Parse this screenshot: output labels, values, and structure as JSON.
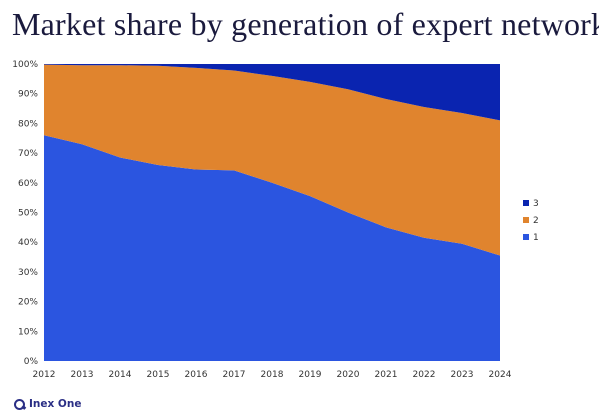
{
  "title": "Market share by generation of expert networks",
  "logo": {
    "text": "Inex One"
  },
  "colors": {
    "gen1": "#2b55e0",
    "gen2": "#e0842e",
    "gen3": "#0a24b0"
  },
  "chart_data": {
    "type": "area",
    "stacked": true,
    "title": "Market share by generation of expert networks",
    "xlabel": "",
    "ylabel": "",
    "x": [
      "2012",
      "2013",
      "2014",
      "2015",
      "2016",
      "2017",
      "2018",
      "2019",
      "2020",
      "2021",
      "2022",
      "2023",
      "2024"
    ],
    "ylim": [
      0,
      100
    ],
    "yticks": [
      "0%",
      "10%",
      "20%",
      "30%",
      "40%",
      "50%",
      "60%",
      "70%",
      "80%",
      "90%",
      "100%"
    ],
    "grid": false,
    "legend_position": "right",
    "legend_order": [
      "3",
      "2",
      "1"
    ],
    "series": [
      {
        "name": "1",
        "color": "#2b55e0",
        "values": [
          76,
          73,
          68.5,
          66,
          64.5,
          64.2,
          60,
          55.5,
          50,
          45,
          41.5,
          39.5,
          35.5
        ]
      },
      {
        "name": "2",
        "color": "#e0842e",
        "values": [
          23.8,
          26.6,
          31.1,
          33.4,
          34.2,
          33.6,
          36,
          38.5,
          41.5,
          43.2,
          44,
          44,
          45.5
        ]
      },
      {
        "name": "3",
        "color": "#0a24b0",
        "values": [
          0.2,
          0.4,
          0.4,
          0.6,
          1.3,
          2.2,
          4,
          6,
          8.5,
          11.8,
          14.5,
          16.5,
          19
        ]
      }
    ]
  }
}
